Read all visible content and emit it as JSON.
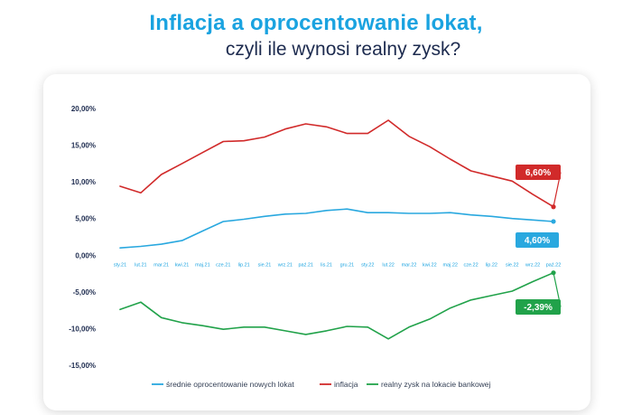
{
  "header": {
    "title": "Inflacja a oprocentowanie lokat,",
    "subtitle": "czyli ile wynosi realny zysk?"
  },
  "chart_data": {
    "type": "line",
    "ylim": [
      -15,
      20
    ],
    "y_ticks": [
      "20,00%",
      "15,00%",
      "10,00%",
      "5,00%",
      "0,00%",
      "-5,00%",
      "-10,00%",
      "-15,00%"
    ],
    "y_tick_values": [
      20,
      15,
      10,
      5,
      0,
      -5,
      -10,
      -15
    ],
    "grid": false,
    "legend_position": "bottom",
    "categories": [
      "sty.21",
      "lut.21",
      "mar.21",
      "kwi.21",
      "maj.21",
      "cze.21",
      "lip.21",
      "sie.21",
      "wrz.21",
      "paź.21",
      "lis.21",
      "gru.21",
      "sty.22",
      "lut.22",
      "mar.22",
      "kwi.22",
      "maj.22",
      "cze.22",
      "lip.22",
      "sie.22",
      "wrz.22",
      "paź.22"
    ],
    "series": [
      {
        "name": "średnie oprocentowanie nowych lokat",
        "color": "#29a8df",
        "values": [
          1.0,
          1.2,
          1.5,
          2.0,
          3.3,
          4.6,
          4.9,
          5.3,
          5.6,
          5.7,
          6.1,
          6.3,
          5.8,
          5.8,
          5.7,
          5.7,
          5.8,
          5.5,
          5.3,
          5.0,
          4.8,
          4.6
        ],
        "end_label": "4,60%"
      },
      {
        "name": "inflacja",
        "color": "#d12a2a",
        "values": [
          9.4,
          8.5,
          11.0,
          12.5,
          14.0,
          15.5,
          15.6,
          16.1,
          17.2,
          17.9,
          17.5,
          16.6,
          16.6,
          18.4,
          16.2,
          14.8,
          13.1,
          11.5,
          10.8,
          10.1,
          8.3,
          6.6
        ],
        "end_label": "6,60%"
      },
      {
        "name": "realny zysk na lokacie bankowej",
        "color": "#21a24a",
        "values": [
          -7.4,
          -6.4,
          -8.5,
          -9.2,
          -9.6,
          -10.1,
          -9.8,
          -9.8,
          -10.3,
          -10.8,
          -10.3,
          -9.7,
          -9.8,
          -11.4,
          -9.8,
          -8.7,
          -7.2,
          -6.1,
          -5.5,
          -4.9,
          -3.6,
          -2.39
        ],
        "end_label": "-2,39%"
      }
    ]
  }
}
